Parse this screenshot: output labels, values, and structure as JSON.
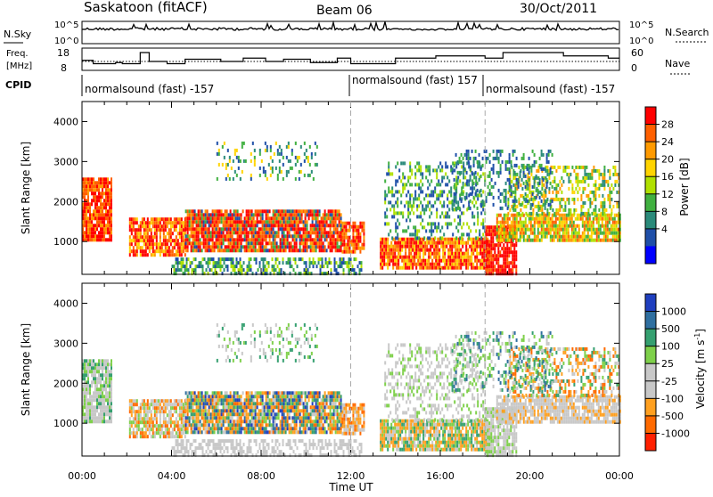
{
  "header": {
    "site": "Saskatoon (fitACF)",
    "beam": "Beam 06",
    "date": "30/Oct/2011"
  },
  "nsky": {
    "label": "N.Sky",
    "ticks": [
      "10^5",
      "10^0"
    ],
    "right_label": "N.Search",
    "right_ticks": [
      "10^5",
      "10^0"
    ]
  },
  "freq": {
    "label_line1": "Freq.",
    "label_line2": "[MHz]",
    "ticks": [
      "18",
      "8"
    ],
    "right_label": "Nave",
    "right_ticks": [
      "60",
      "0"
    ],
    "freq_steps": [
      [
        0.0,
        12.5
      ],
      [
        0.5,
        11.0
      ],
      [
        1.5,
        11.5
      ],
      [
        1.8,
        11.0
      ],
      [
        2.6,
        16.0
      ],
      [
        3.0,
        12.0
      ],
      [
        3.8,
        11.0
      ],
      [
        4.6,
        13.0
      ],
      [
        6.2,
        12.0
      ],
      [
        7.2,
        13.5
      ],
      [
        8.2,
        12.0
      ],
      [
        9.0,
        13.0
      ],
      [
        10.2,
        11.5
      ],
      [
        11.4,
        13.5
      ],
      [
        12.0,
        11.0
      ],
      [
        14.0,
        13.5
      ],
      [
        15.8,
        14.5
      ],
      [
        18.0,
        13.5
      ],
      [
        18.8,
        16.0
      ],
      [
        21.5,
        14.5
      ],
      [
        23.5,
        13.5
      ],
      [
        24.0,
        13.5
      ]
    ]
  },
  "cpid": {
    "label": "CPID",
    "segments": [
      {
        "text": "normalsound (fast) -157",
        "start": 0
      },
      {
        "text": "normalsound (fast) 157",
        "start": 12
      },
      {
        "text": "normalsound (fast) -157",
        "start": 18
      }
    ]
  },
  "chart_data": [
    {
      "type": "heatmap",
      "name": "power",
      "ylabel": "Slant Range [km]",
      "xlabel": "",
      "xlim": [
        0,
        24
      ],
      "ylim": [
        180,
        4500
      ],
      "yticks": [
        1000,
        2000,
        3000,
        4000
      ],
      "colorbar": {
        "label": "Power [dB]",
        "ticks": [
          "28",
          "24",
          "20",
          "16",
          "12",
          "8",
          "4"
        ],
        "colors": [
          "#ff0000",
          "#ff6000",
          "#ff9a00",
          "#ffd400",
          "#b0e000",
          "#40b040",
          "#2a8a7a",
          "#1f4fa8",
          "#0000ff"
        ]
      }
    },
    {
      "type": "heatmap",
      "name": "velocity",
      "ylabel": "Slant Range [km]",
      "xlabel": "Time UT",
      "xlim": [
        0,
        24
      ],
      "ylim": [
        180,
        4500
      ],
      "yticks": [
        1000,
        2000,
        3000,
        4000
      ],
      "xticks": [
        "00:00",
        "04:00",
        "08:00",
        "12:00",
        "16:00",
        "20:00",
        "00:00"
      ],
      "colorbar": {
        "label": "Velocity [m s",
        "label_sup": "-1",
        "label_end": "]",
        "ticks": [
          "1000",
          "500",
          "100",
          "25",
          "-25",
          "-100",
          "-500",
          "-1000"
        ],
        "colors": [
          "#1f3fbf",
          "#2f6fa0",
          "#35a070",
          "#7ed04a",
          "#c8c8c8",
          "#c8c8c8",
          "#ffa020",
          "#ff6a00",
          "#ff2000"
        ]
      }
    }
  ]
}
